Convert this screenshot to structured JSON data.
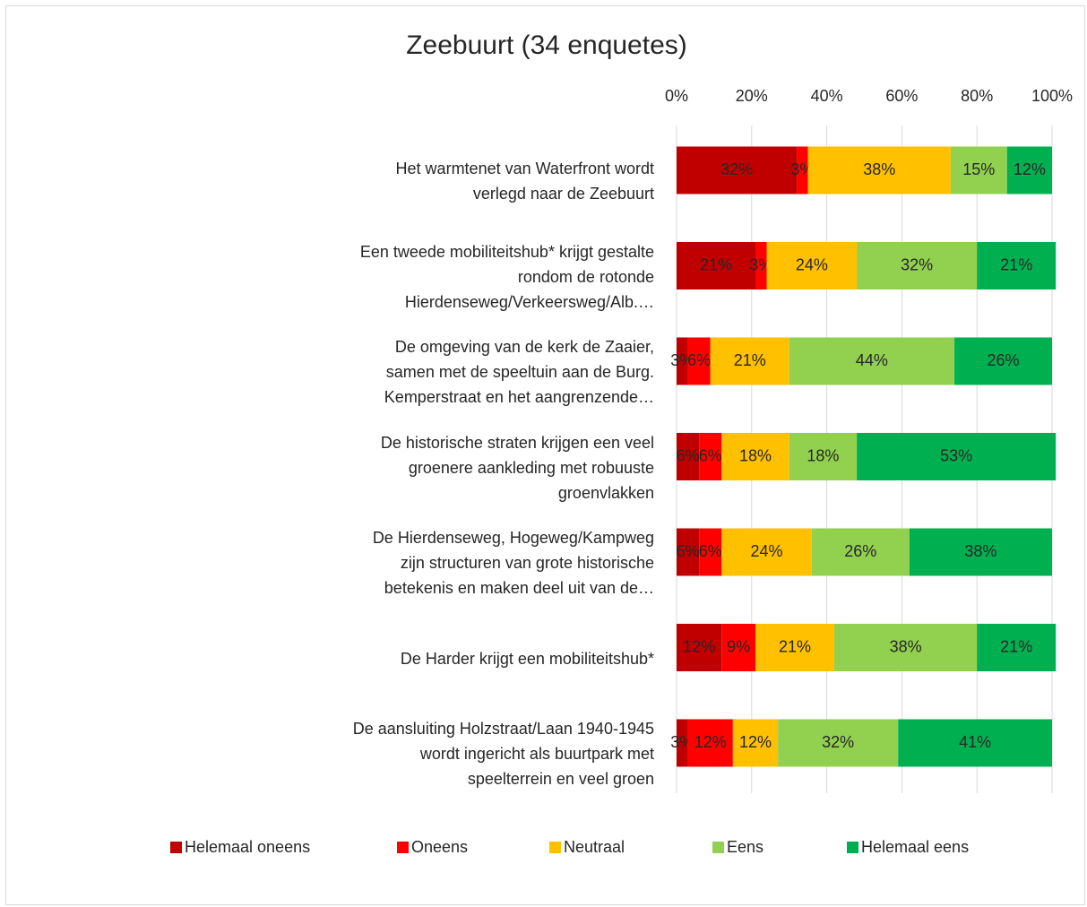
{
  "chart_data": {
    "type": "stacked_bar_horizontal",
    "title": "Zeebuurt (34 enquetes)",
    "categories": [
      "Het warmtenet van Waterfront wordt\nverlegd naar de Zeebuurt",
      "Een tweede mobiliteitshub* krijgt gestalte\nrondom de rotonde\nHierdenseweg/Verkeersweg/Alb.…",
      "De omgeving van de kerk de Zaaier,\nsamen met de speeltuin aan de Burg.\nKemperstraat en het aangrenzende…",
      "De historische straten krijgen een veel\ngroenere aankleding met robuuste\ngroenvlakken",
      "De Hierdenseweg, Hogeweg/Kampweg\nzijn structuren van grote historische\nbetekenis en maken deel uit van de…",
      "De Harder krijgt een mobiliteitshub*",
      "De aansluiting Holzstraat/Laan 1940-1945\nwordt ingericht als buurtpark met\nspeelterrein en veel groen"
    ],
    "series": [
      {
        "name": "Helemaal oneens",
        "color": "#c00000",
        "values": [
          32,
          21,
          3,
          6,
          6,
          12,
          3
        ],
        "value_labels": [
          "32%",
          "21%",
          "3%",
          "6%",
          "6%",
          "12%",
          "3%"
        ]
      },
      {
        "name": "Oneens",
        "color": "#ff0000",
        "values": [
          3,
          3,
          6,
          6,
          6,
          9,
          12
        ],
        "value_labels": [
          "3%",
          "3%",
          "6%",
          "6%",
          "6%",
          "9%",
          "12%"
        ]
      },
      {
        "name": "Neutraal",
        "color": "#ffc000",
        "values": [
          38,
          24,
          21,
          18,
          24,
          21,
          12
        ],
        "value_labels": [
          "38%",
          "24%",
          "21%",
          "18%",
          "24%",
          "21%",
          "12%"
        ]
      },
      {
        "name": "Eens",
        "color": "#92d050",
        "values": [
          15,
          32,
          44,
          18,
          26,
          38,
          32
        ],
        "value_labels": [
          "15%",
          "32%",
          "44%",
          "18%",
          "26%",
          "38%",
          "32%"
        ]
      },
      {
        "name": "Helemaal eens",
        "color": "#00b050",
        "values": [
          12,
          21,
          26,
          53,
          38,
          21,
          41
        ],
        "value_labels": [
          "12%",
          "21%",
          "26%",
          "53%",
          "38%",
          "21%",
          "41%"
        ]
      }
    ],
    "xlim": [
      0,
      100
    ],
    "xticks": [
      {
        "value": 0,
        "label": "0%"
      },
      {
        "value": 20,
        "label": "20%"
      },
      {
        "value": 40,
        "label": "40%"
      },
      {
        "value": 60,
        "label": "60%"
      },
      {
        "value": 80,
        "label": "80%"
      },
      {
        "value": 100,
        "label": "100%"
      }
    ],
    "grid": true,
    "legend": "bottom"
  }
}
